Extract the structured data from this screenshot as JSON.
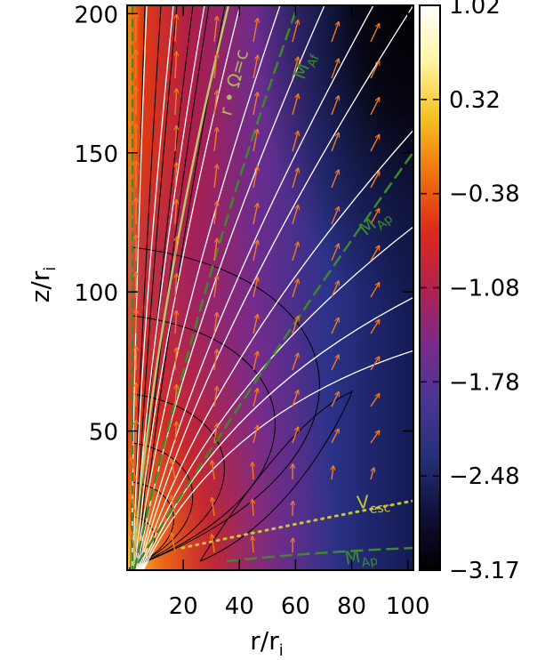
{
  "chart_data": {
    "type": "heatmap",
    "xlabel": "r/r",
    "xlabel_sub": "i",
    "ylabel": "z/r",
    "ylabel_sub": "i",
    "xlim": [
      0,
      102
    ],
    "ylim": [
      0,
      203
    ],
    "xticks": [
      20,
      40,
      60,
      80,
      100
    ],
    "yticks": [
      50,
      100,
      150,
      200
    ],
    "colorbar": {
      "range": [
        -3.17,
        1.02
      ],
      "tick_labels": [
        "1.02",
        "0.32",
        "−0.38",
        "−1.08",
        "−1.78",
        "−2.48",
        "−3.17"
      ],
      "colors": [
        "#000000",
        "#10103a",
        "#24307a",
        "#4a3592",
        "#7a2a8c",
        "#b3214f",
        "#dc2a1a",
        "#f07010",
        "#f5c020",
        "#fff4a0",
        "#ffffff"
      ]
    },
    "annotations": [
      {
        "text": "r • Ω=c",
        "x": 37,
        "y": 163,
        "rotate": -75,
        "color": "#a8b860"
      },
      {
        "text": "M",
        "sub": "Af",
        "x": 63,
        "y": 176,
        "rotate": -68,
        "color": "#3c8a2a"
      },
      {
        "text": "M",
        "sub": "Ap",
        "x": 85,
        "y": 120,
        "rotate": -40,
        "color": "#3c8a2a"
      },
      {
        "text": "V",
        "sub": "esc",
        "x": 82,
        "y": 22,
        "rotate": -5,
        "color": "#c8c830"
      },
      {
        "text": "M",
        "sub": "Ap",
        "x": 78,
        "y": 2,
        "rotate": -10,
        "color": "#3c8a2a"
      }
    ],
    "grid": false,
    "legend": "none",
    "overlays": [
      "white field lines",
      "black density contours",
      "orange velocity vectors",
      "dashed green critical surfaces"
    ]
  }
}
